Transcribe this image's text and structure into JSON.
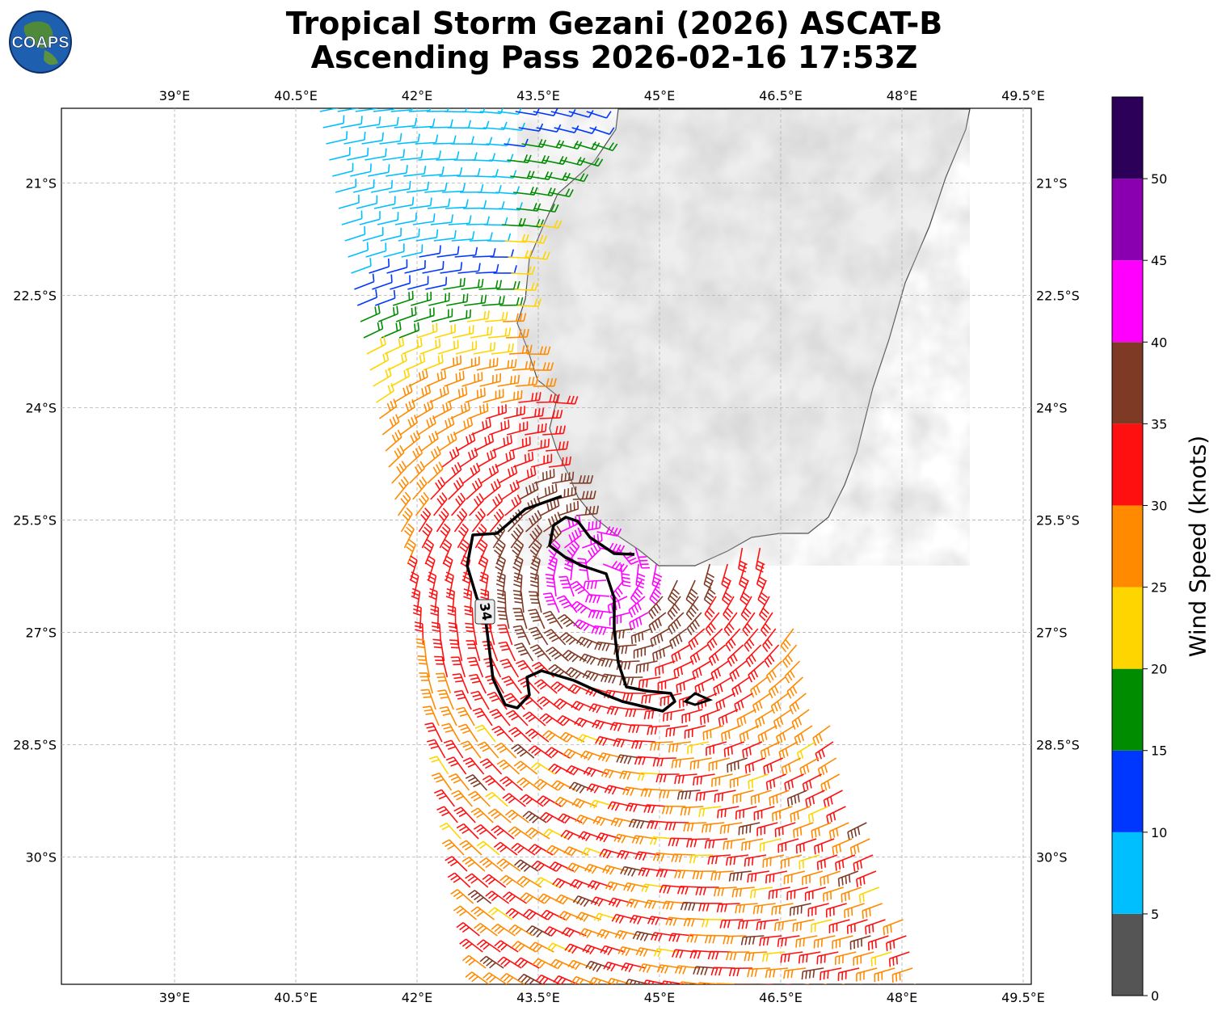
{
  "title_line1": "Tropical Storm Gezani (2026) ASCAT-B",
  "title_line2": "Ascending Pass 2026-02-16 17:53Z",
  "logo_text": "COAPS",
  "map": {
    "lon_range": [
      37.6,
      49.6
    ],
    "lat_range": [
      -31.7,
      -20.0
    ],
    "lon_ticks": [
      39.0,
      40.5,
      42.0,
      43.5,
      45.0,
      46.5,
      48.0,
      49.5
    ],
    "lon_tick_labels": [
      "39°E",
      "40.5°E",
      "42°E",
      "43.5°E",
      "45°E",
      "46.5°E",
      "48°E",
      "49.5°E"
    ],
    "lat_ticks": [
      -21.0,
      -22.5,
      -24.0,
      -25.5,
      -27.0,
      -28.5,
      -30.0
    ],
    "lat_tick_labels": [
      "21°S",
      "22.5°S",
      "24°S",
      "25.5°S",
      "27°S",
      "28.5°S",
      "30°S"
    ],
    "gridlines": true,
    "contour_label": "34"
  },
  "colorbar": {
    "label": "Wind Speed (knots)",
    "ticks": [
      0,
      5,
      10,
      15,
      20,
      25,
      30,
      35,
      40,
      45,
      50
    ],
    "tick_labels": [
      "0",
      "5",
      "10",
      "15",
      "20",
      "25",
      "30",
      "35",
      "40",
      "45",
      "50"
    ],
    "max": 55,
    "colors": [
      "#555555",
      "#00bfff",
      "#0037ff",
      "#008c00",
      "#ffd500",
      "#ff8a00",
      "#ff1010",
      "#7f3a26",
      "#ff00ff",
      "#8a00b0",
      "#2c0058"
    ]
  }
}
